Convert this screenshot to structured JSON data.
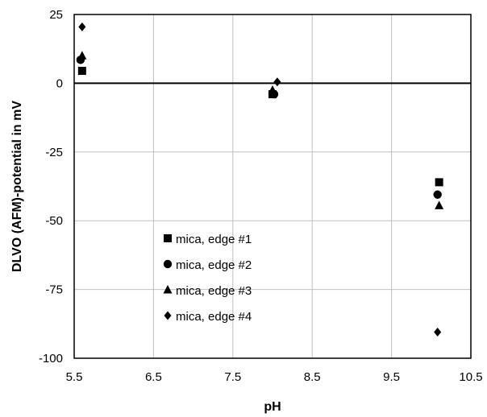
{
  "chart_data": {
    "type": "scatter",
    "xlabel": "pH",
    "ylabel": "DLVO (AFM)-potential in mV",
    "xlim": [
      5.5,
      10.5
    ],
    "ylim": [
      -100,
      25
    ],
    "x_ticks": [
      "5.5",
      "6.5",
      "7.5",
      "8.5",
      "9.5",
      "10.5"
    ],
    "y_ticks": [
      "25",
      "0",
      "-25",
      "-50",
      "-75",
      "-100"
    ],
    "grid": true,
    "zero_line": true,
    "legend_position": "inside-lower-left",
    "series": [
      {
        "name": "mica, edge #1",
        "marker": "square",
        "color": "#000000",
        "points": [
          [
            5.6,
            4.5
          ],
          [
            8.0,
            -4.0
          ],
          [
            10.1,
            -36.0
          ]
        ]
      },
      {
        "name": "mica, edge #2",
        "marker": "circle",
        "color": "#000000",
        "points": [
          [
            5.58,
            8.5
          ],
          [
            8.02,
            -4.0
          ],
          [
            10.08,
            -40.5
          ]
        ]
      },
      {
        "name": "mica, edge #3",
        "marker": "triangle",
        "color": "#000000",
        "points": [
          [
            5.6,
            10.0
          ],
          [
            8.0,
            -2.5
          ],
          [
            10.1,
            -44.5
          ]
        ]
      },
      {
        "name": "mica, edge #4",
        "marker": "diamond",
        "color": "#000000",
        "points": [
          [
            5.6,
            20.5
          ],
          [
            8.06,
            0.5
          ],
          [
            10.08,
            -90.5
          ]
        ]
      }
    ]
  }
}
